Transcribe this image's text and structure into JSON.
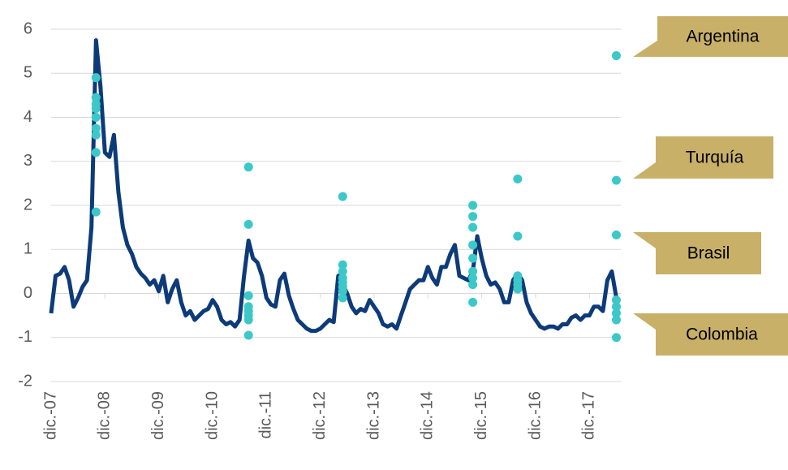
{
  "chart_data": {
    "type": "line",
    "xlim": [
      "2007-12",
      "2018-07"
    ],
    "xticks": [
      {
        "value": "2007-12",
        "label": "dic.-07"
      },
      {
        "value": "2008-12",
        "label": "dic.-08"
      },
      {
        "value": "2009-12",
        "label": "dic.-09"
      },
      {
        "value": "2010-12",
        "label": "dic.-10"
      },
      {
        "value": "2011-12",
        "label": "dic.-11"
      },
      {
        "value": "2012-12",
        "label": "dic.-12"
      },
      {
        "value": "2013-12",
        "label": "dic.-13"
      },
      {
        "value": "2014-12",
        "label": "dic.-14"
      },
      {
        "value": "2015-12",
        "label": "dic.-15"
      },
      {
        "value": "2016-12",
        "label": "dic.-16"
      },
      {
        "value": "2017-12",
        "label": "dic.-17"
      }
    ],
    "ylim": [
      -2,
      6
    ],
    "yticks": [
      -2,
      -1,
      0,
      1,
      2,
      3,
      4,
      5,
      6
    ],
    "grid": true,
    "annotations": [
      "Argentina",
      "Turquía",
      "Brasil",
      "Colombia"
    ],
    "annotation_color": "#c9b068",
    "series": [
      {
        "type": "line",
        "color": "#0d3b7a",
        "x": [
          "2007-12",
          "2008-01",
          "2008-02",
          "2008-03",
          "2008-04",
          "2008-05",
          "2008-06",
          "2008-07",
          "2008-08",
          "2008-09",
          "2008-10",
          "2008-11",
          "2008-12",
          "2009-01",
          "2009-02",
          "2009-03",
          "2009-04",
          "2009-05",
          "2009-06",
          "2009-07",
          "2009-08",
          "2009-09",
          "2009-10",
          "2009-11",
          "2009-12",
          "2010-01",
          "2010-02",
          "2010-03",
          "2010-04",
          "2010-05",
          "2010-06",
          "2010-07",
          "2010-08",
          "2010-09",
          "2010-10",
          "2010-11",
          "2010-12",
          "2011-01",
          "2011-02",
          "2011-03",
          "2011-04",
          "2011-05",
          "2011-06",
          "2011-07",
          "2011-08",
          "2011-09",
          "2011-10",
          "2011-11",
          "2011-12",
          "2012-01",
          "2012-02",
          "2012-03",
          "2012-04",
          "2012-05",
          "2012-06",
          "2012-07",
          "2012-08",
          "2012-09",
          "2012-10",
          "2012-11",
          "2012-12",
          "2013-01",
          "2013-02",
          "2013-03",
          "2013-04",
          "2013-05",
          "2013-06",
          "2013-07",
          "2013-08",
          "2013-09",
          "2013-10",
          "2013-11",
          "2013-12",
          "2014-01",
          "2014-02",
          "2014-03",
          "2014-04",
          "2014-05",
          "2014-06",
          "2014-07",
          "2014-08",
          "2014-09",
          "2014-10",
          "2014-11",
          "2014-12",
          "2015-01",
          "2015-02",
          "2015-03",
          "2015-04",
          "2015-05",
          "2015-06",
          "2015-07",
          "2015-08",
          "2015-09",
          "2015-10",
          "2015-11",
          "2015-12",
          "2016-01",
          "2016-02",
          "2016-03",
          "2016-04",
          "2016-05",
          "2016-06",
          "2016-07",
          "2016-08",
          "2016-09",
          "2016-10",
          "2016-11",
          "2016-12",
          "2017-01",
          "2017-02",
          "2017-03",
          "2017-04",
          "2017-05",
          "2017-06",
          "2017-07",
          "2017-08",
          "2017-09",
          "2017-10",
          "2017-11",
          "2017-12",
          "2018-01",
          "2018-02",
          "2018-03",
          "2018-04",
          "2018-05",
          "2018-06"
        ],
        "values": [
          -0.45,
          0.4,
          0.45,
          0.6,
          0.3,
          -0.3,
          -0.1,
          0.15,
          0.3,
          1.5,
          5.75,
          4.7,
          3.2,
          3.1,
          3.6,
          2.3,
          1.5,
          1.1,
          0.9,
          0.6,
          0.45,
          0.35,
          0.2,
          0.3,
          0.05,
          0.4,
          -0.2,
          0.1,
          0.3,
          -0.2,
          -0.5,
          -0.4,
          -0.6,
          -0.5,
          -0.4,
          -0.35,
          -0.15,
          -0.3,
          -0.6,
          -0.7,
          -0.65,
          -0.75,
          -0.6,
          0.4,
          1.2,
          0.8,
          0.7,
          0.4,
          -0.1,
          -0.25,
          -0.3,
          0.3,
          0.45,
          -0.05,
          -0.35,
          -0.6,
          -0.7,
          -0.8,
          -0.85,
          -0.85,
          -0.8,
          -0.7,
          -0.6,
          -0.65,
          0.4,
          0.2,
          0.0,
          -0.3,
          -0.45,
          -0.35,
          -0.4,
          -0.15,
          -0.3,
          -0.45,
          -0.7,
          -0.75,
          -0.7,
          -0.8,
          -0.5,
          -0.2,
          0.1,
          0.2,
          0.3,
          0.3,
          0.6,
          0.35,
          0.2,
          0.6,
          0.6,
          0.9,
          1.1,
          0.4,
          0.35,
          0.3,
          0.5,
          1.3,
          0.8,
          0.4,
          0.2,
          0.25,
          0.1,
          -0.2,
          -0.2,
          0.3,
          0.45,
          0.3,
          -0.2,
          -0.45,
          -0.6,
          -0.75,
          -0.8,
          -0.75,
          -0.75,
          -0.8,
          -0.7,
          -0.7,
          -0.55,
          -0.5,
          -0.6,
          -0.5,
          -0.5,
          -0.3,
          -0.3,
          -0.4,
          0.3,
          0.5,
          -0.1
        ]
      },
      {
        "type": "scatter",
        "color": "#3cc8c8",
        "x": [
          "2008-10",
          "2008-10",
          "2008-10",
          "2008-10",
          "2008-10",
          "2008-10",
          "2008-10",
          "2008-10",
          "2008-10",
          "2011-08",
          "2011-08",
          "2011-08",
          "2011-08",
          "2011-08",
          "2011-08",
          "2011-08",
          "2011-08",
          "2013-05",
          "2013-05",
          "2013-05",
          "2013-05",
          "2013-05",
          "2013-05",
          "2013-05",
          "2013-05",
          "2015-10",
          "2015-10",
          "2015-10",
          "2015-10",
          "2015-10",
          "2015-10",
          "2015-10",
          "2015-10",
          "2015-10",
          "2016-08",
          "2016-08",
          "2016-08",
          "2016-08",
          "2016-08",
          "2016-08",
          "2018-06",
          "2018-06",
          "2018-06",
          "2018-06",
          "2018-06",
          "2018-06",
          "2018-06",
          "2018-06"
        ],
        "values": [
          4.9,
          4.45,
          4.3,
          4.2,
          4.0,
          3.75,
          3.6,
          3.2,
          1.85,
          2.87,
          1.57,
          -0.05,
          -0.3,
          -0.4,
          -0.5,
          -0.6,
          -0.95,
          2.2,
          0.65,
          0.5,
          0.35,
          0.25,
          0.15,
          0.05,
          -0.1,
          2.0,
          1.75,
          1.5,
          1.1,
          0.8,
          0.5,
          0.35,
          0.2,
          -0.2,
          2.6,
          1.3,
          0.4,
          0.3,
          0.2,
          0.1,
          5.4,
          2.57,
          1.33,
          -0.15,
          -0.3,
          -0.45,
          -0.6,
          -1.0
        ]
      }
    ]
  }
}
